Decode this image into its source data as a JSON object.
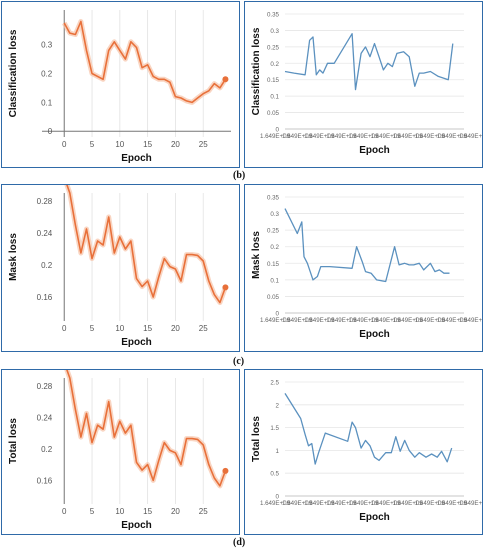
{
  "labels": {
    "b": "(b)",
    "c": "(c)",
    "d": "(d)"
  },
  "colors": {
    "orange": "#e8703a",
    "orange_band": "#f6c3a8",
    "blue": "#5b91bf",
    "frame": "#2f6aa8"
  },
  "chart_data": [
    {
      "id": "cls-epoch",
      "type": "line",
      "xlabel": "Epoch",
      "ylabel": "Classification loss",
      "xlim": [
        -4,
        30
      ],
      "ylim": [
        -0.02,
        0.42
      ],
      "xticks": [
        0,
        5,
        10,
        15,
        20,
        25
      ],
      "yticks": [
        0,
        0.1,
        0.2,
        0.3
      ],
      "ytick_labels": [
        "0",
        "0.1",
        "0.2",
        "0.3"
      ],
      "x": [
        0,
        1,
        2,
        3,
        4,
        5,
        6,
        7,
        8,
        9,
        10,
        11,
        12,
        13,
        14,
        15,
        16,
        17,
        18,
        19,
        20,
        21,
        22,
        23,
        24,
        25,
        26,
        27,
        28,
        29
      ],
      "values": [
        0.375,
        0.34,
        0.335,
        0.38,
        0.28,
        0.2,
        0.19,
        0.18,
        0.28,
        0.31,
        0.28,
        0.25,
        0.31,
        0.29,
        0.22,
        0.23,
        0.19,
        0.18,
        0.18,
        0.17,
        0.12,
        0.115,
        0.105,
        0.1,
        0.115,
        0.13,
        0.14,
        0.165,
        0.15,
        0.18
      ],
      "grid": "x-vertical"
    },
    {
      "id": "cls-time",
      "type": "line",
      "xlabel": "Epoch",
      "ylabel": "Classification loss",
      "ylim": [
        0,
        0.35
      ],
      "yticks": [
        0,
        0.05,
        0.1,
        0.15,
        0.2,
        0.25,
        0.3,
        0.35
      ],
      "ytick_labels": [
        "0",
        "0.05",
        "0.1",
        "0.15",
        "0.2",
        "0.25",
        "0.3",
        "0.35"
      ],
      "xtick_labels": [
        "1.649E+09",
        "1.649E+09",
        "1.649E+09",
        "1.649E+09",
        "1.649E+09",
        "1.649E+09",
        "1.649E+09",
        "1.649E+09",
        "1.649E+09",
        "1.649E+09"
      ],
      "x": [
        0,
        0.4,
        0.9,
        1.1,
        1.25,
        1.4,
        1.55,
        1.7,
        1.9,
        2.2,
        3.0,
        3.15,
        3.4,
        3.6,
        3.8,
        4.0,
        4.2,
        4.4,
        4.6,
        4.8,
        5.0,
        5.3,
        5.55,
        5.8,
        6.0,
        6.2,
        6.5,
        6.85,
        7.3,
        7.5
      ],
      "values": [
        0.175,
        0.17,
        0.165,
        0.27,
        0.28,
        0.165,
        0.18,
        0.17,
        0.2,
        0.2,
        0.29,
        0.12,
        0.23,
        0.25,
        0.22,
        0.26,
        0.22,
        0.18,
        0.2,
        0.19,
        0.23,
        0.235,
        0.22,
        0.13,
        0.17,
        0.17,
        0.175,
        0.16,
        0.15,
        0.26
      ]
    },
    {
      "id": "mask-epoch",
      "type": "line",
      "xlabel": "Epoch",
      "ylabel": "Mask loss",
      "xlim": [
        -4,
        30
      ],
      "ylim": [
        0.13,
        0.29
      ],
      "xticks": [
        0,
        5,
        10,
        15,
        20,
        25
      ],
      "yticks": [
        0.16,
        0.2,
        0.24,
        0.28
      ],
      "ytick_labels": [
        "0.16",
        "0.2",
        "0.24",
        "0.28"
      ],
      "x": [
        0,
        1,
        2,
        3,
        4,
        5,
        6,
        7,
        8,
        9,
        10,
        11,
        12,
        13,
        14,
        15,
        16,
        17,
        18,
        19,
        20,
        21,
        22,
        23,
        24,
        25,
        26,
        27,
        28,
        29
      ],
      "values": [
        0.31,
        0.29,
        0.25,
        0.215,
        0.245,
        0.208,
        0.23,
        0.225,
        0.26,
        0.215,
        0.235,
        0.22,
        0.23,
        0.183,
        0.173,
        0.18,
        0.16,
        0.185,
        0.208,
        0.198,
        0.195,
        0.18,
        0.213,
        0.213,
        0.212,
        0.205,
        0.18,
        0.163,
        0.153,
        0.172
      ],
      "grid": "x-vertical"
    },
    {
      "id": "mask-time",
      "type": "line",
      "xlabel": "Epoch",
      "ylabel": "Mask loss",
      "ylim": [
        0,
        0.35
      ],
      "yticks": [
        0,
        0.05,
        0.1,
        0.15,
        0.2,
        0.25,
        0.3,
        0.35
      ],
      "ytick_labels": [
        "0",
        "0.05",
        "0.1",
        "0.15",
        "0.2",
        "0.25",
        "0.3",
        "0.35"
      ],
      "xtick_labels": [
        "1.649E+09",
        "1.649E+09",
        "1.649E+09",
        "1.649E+09",
        "1.649E+09",
        "1.649E+09",
        "1.649E+09",
        "1.649E+09",
        "1.649E+09",
        "1.649E+09"
      ],
      "x": [
        0,
        0.55,
        0.75,
        0.85,
        1.0,
        1.25,
        1.45,
        1.6,
        2.0,
        3.0,
        3.2,
        3.45,
        3.6,
        3.85,
        4.1,
        4.5,
        4.9,
        5.1,
        5.35,
        5.55,
        5.75,
        6.0,
        6.2,
        6.5,
        6.7,
        6.9,
        7.1,
        7.35
      ],
      "values": [
        0.315,
        0.24,
        0.275,
        0.17,
        0.15,
        0.1,
        0.11,
        0.14,
        0.14,
        0.135,
        0.2,
        0.155,
        0.125,
        0.12,
        0.1,
        0.095,
        0.2,
        0.145,
        0.15,
        0.145,
        0.145,
        0.15,
        0.13,
        0.15,
        0.125,
        0.13,
        0.12,
        0.12
      ]
    },
    {
      "id": "total-epoch",
      "type": "line",
      "xlabel": "Epoch",
      "ylabel": "Total loss",
      "xlim": [
        -4,
        30
      ],
      "ylim": [
        0.13,
        0.29
      ],
      "xticks": [
        0,
        5,
        10,
        15,
        20,
        25
      ],
      "yticks": [
        0.16,
        0.2,
        0.24,
        0.28
      ],
      "ytick_labels": [
        "0.16",
        "0.2",
        "0.24",
        "0.28"
      ],
      "x": [
        0,
        1,
        2,
        3,
        4,
        5,
        6,
        7,
        8,
        9,
        10,
        11,
        12,
        13,
        14,
        15,
        16,
        17,
        18,
        19,
        20,
        21,
        22,
        23,
        24,
        25,
        26,
        27,
        28,
        29
      ],
      "values": [
        0.31,
        0.29,
        0.25,
        0.215,
        0.245,
        0.208,
        0.23,
        0.225,
        0.26,
        0.215,
        0.235,
        0.22,
        0.23,
        0.183,
        0.173,
        0.18,
        0.16,
        0.185,
        0.208,
        0.198,
        0.195,
        0.18,
        0.213,
        0.213,
        0.212,
        0.205,
        0.18,
        0.163,
        0.153,
        0.172
      ],
      "grid": "x-vertical"
    },
    {
      "id": "total-time",
      "type": "line",
      "xlabel": "Epoch",
      "ylabel": "Total loss",
      "ylim": [
        0,
        2.5
      ],
      "yticks": [
        0,
        0.5,
        1,
        1.5,
        2,
        2.5
      ],
      "ytick_labels": [
        "0",
        "0.5",
        "1",
        "1.5",
        "2",
        "2.5"
      ],
      "xtick_labels": [
        "1.649E+09",
        "1.649E+09",
        "1.649E+09",
        "1.649E+09",
        "1.649E+09",
        "1.649E+09",
        "1.649E+09",
        "1.649E+09",
        "1.649E+09",
        "1.649E+09"
      ],
      "x": [
        0,
        0.7,
        0.9,
        1.05,
        1.2,
        1.35,
        1.5,
        1.8,
        2.8,
        3.0,
        3.15,
        3.4,
        3.6,
        3.8,
        4.0,
        4.2,
        4.5,
        4.75,
        4.95,
        5.15,
        5.35,
        5.55,
        5.8,
        6.0,
        6.3,
        6.55,
        6.8,
        7.0,
        7.25,
        7.45
      ],
      "values": [
        2.25,
        1.7,
        1.35,
        1.1,
        1.15,
        0.7,
        0.95,
        1.38,
        1.2,
        1.62,
        1.5,
        1.05,
        1.22,
        1.1,
        0.85,
        0.78,
        0.95,
        0.95,
        1.3,
        0.98,
        1.22,
        1.0,
        0.85,
        0.95,
        0.85,
        0.92,
        0.85,
        0.98,
        0.75,
        1.05
      ]
    }
  ]
}
